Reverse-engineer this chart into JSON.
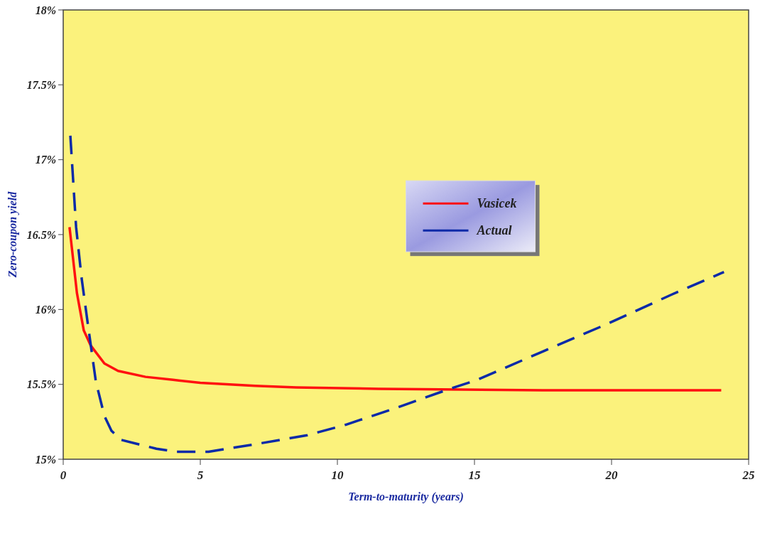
{
  "chart_data": {
    "type": "line",
    "xlabel": "Term-to-maturity (years)",
    "ylabel": "Zero-coupon yield",
    "xlim": [
      0,
      25
    ],
    "xticks": [
      0,
      5,
      10,
      15,
      20,
      25
    ],
    "ylim": [
      15,
      18
    ],
    "yticks": [
      {
        "value": 15,
        "label": "15%"
      },
      {
        "value": 15.5,
        "label": "15.5%"
      },
      {
        "value": 16,
        "label": "16%"
      },
      {
        "value": 16.5,
        "label": "16.5%"
      },
      {
        "value": 17,
        "label": "17%"
      },
      {
        "value": 17.5,
        "label": "17.5%"
      },
      {
        "value": 18,
        "label": "18%"
      }
    ],
    "grid": false,
    "legend": "center",
    "series": [
      {
        "name": "Vasicek",
        "color": "#ff1010",
        "line_style": "solid",
        "x": [
          0.23,
          0.5,
          0.75,
          1,
          1.5,
          2,
          3,
          4,
          5,
          7,
          8.5,
          11.5,
          18,
          24
        ],
        "values": [
          16.55,
          16.11,
          15.86,
          15.76,
          15.64,
          15.59,
          15.55,
          15.53,
          15.51,
          15.49,
          15.48,
          15.47,
          15.46,
          15.46
        ]
      },
      {
        "name": "Actual",
        "color": "#0a2aa8",
        "line_style": "dashed",
        "x": [
          0.26,
          0.47,
          0.67,
          0.93,
          1.19,
          1.5,
          1.76,
          2.1,
          3.4,
          4.1,
          5.3,
          7,
          8.9,
          10.3,
          12.1,
          14.1,
          15.1,
          17.5,
          19.8,
          22.2,
          24.1
        ],
        "values": [
          17.16,
          16.55,
          16.21,
          15.86,
          15.52,
          15.29,
          15.19,
          15.13,
          15.07,
          15.05,
          15.05,
          15.1,
          15.16,
          15.23,
          15.34,
          15.47,
          15.53,
          15.72,
          15.9,
          16.1,
          16.25
        ]
      }
    ]
  }
}
